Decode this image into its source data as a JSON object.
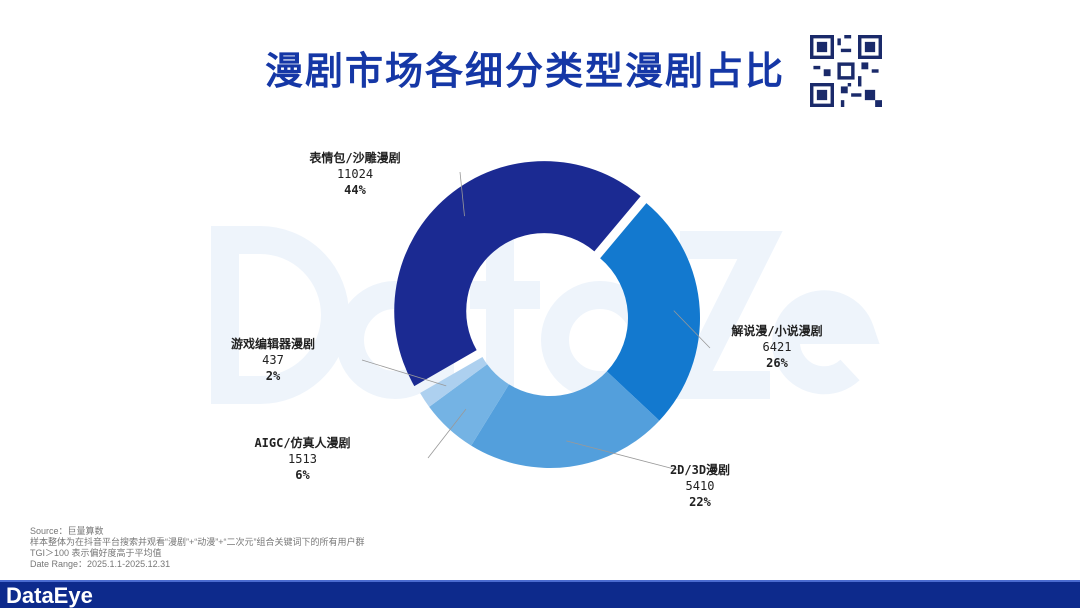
{
  "title": "漫剧市场各细分类型漫剧占比",
  "watermark": "DataEye",
  "chart_data": {
    "type": "pie",
    "donut": true,
    "slices": [
      {
        "label": "表情包/沙雕漫剧",
        "value": 11024,
        "percent": "44%",
        "color": "#0f1f8c"
      },
      {
        "label": "解说漫/小说漫剧",
        "value": 6421,
        "percent": "26%",
        "color": "#0672cc"
      },
      {
        "label": "2D/3D漫剧",
        "value": 5410,
        "percent": "22%",
        "color": "#4a9ada"
      },
      {
        "label": "AIGC/仿真人漫剧",
        "value": 1513,
        "percent": "6%",
        "color": "#6dafe3"
      },
      {
        "label": "游戏编辑器漫剧",
        "value": 437,
        "percent": "2%",
        "color": "#a9cdee"
      }
    ]
  },
  "notes": {
    "source": "Source：巨量算数",
    "sample": "样本整体为在抖音平台搜索并观看“漫剧”+“动漫”+“二次元”组合关键词下的所有用户群",
    "tgi": "TGI＞100 表示偏好度高于平均值",
    "date_range": "Date Range：2025.1.1-2025.12.31"
  },
  "footer": {
    "brand": "DataEye"
  }
}
